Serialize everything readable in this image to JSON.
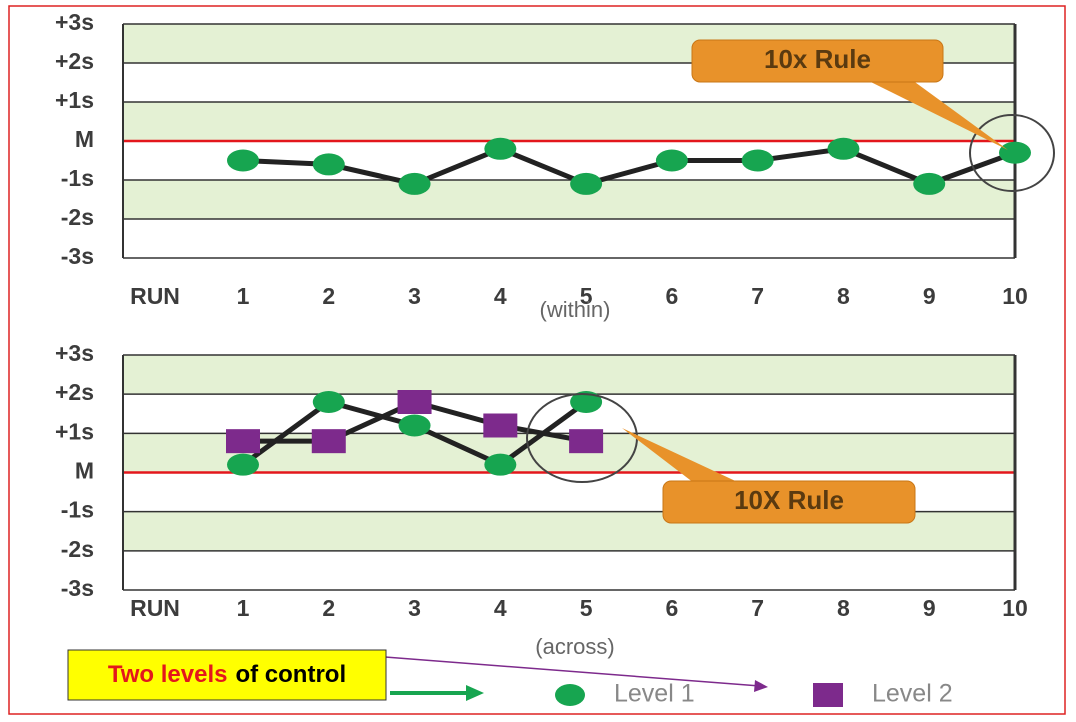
{
  "chart_data": [
    {
      "type": "line",
      "x_label": "RUN",
      "subtitle": "(within)",
      "annotation": "10x Rule",
      "categories": [
        1,
        2,
        3,
        4,
        5,
        6,
        7,
        8,
        9,
        10
      ],
      "series": [
        {
          "color": "#17a550",
          "line_color": "#222222",
          "marker": "circle",
          "values": [
            -0.5,
            -0.6,
            -1.1,
            -0.2,
            -1.1,
            -0.5,
            -0.5,
            -0.2,
            -1.1,
            -0.3
          ]
        }
      ],
      "ylim": [
        -3,
        3
      ],
      "yticks": [
        {
          "value": 3,
          "label": "+3s"
        },
        {
          "value": 2,
          "label": "+2s"
        },
        {
          "value": 1,
          "label": "+1s"
        },
        {
          "value": 0,
          "label": "M"
        },
        {
          "value": -1,
          "label": "-1s"
        },
        {
          "value": -2,
          "label": "-2s"
        },
        {
          "value": -3,
          "label": "-3s"
        }
      ],
      "hline": {
        "value": 0,
        "color": "#e3171c"
      },
      "grid": true
    },
    {
      "type": "line",
      "x_label": "RUN",
      "subtitle": "(across)",
      "annotation": "10X Rule",
      "categories": [
        1,
        2,
        3,
        4,
        5,
        6,
        7,
        8,
        9,
        10
      ],
      "series": [
        {
          "name": "Level 1",
          "color": "#17a550",
          "line_color": "#222222",
          "marker": "circle",
          "values": [
            0.2,
            1.8,
            1.2,
            0.2,
            1.8,
            null,
            null,
            null,
            null,
            null
          ]
        },
        {
          "name": "Level 2",
          "color": "#7d2a8c",
          "line_color": "#222222",
          "marker": "square",
          "values": [
            0.8,
            0.8,
            1.8,
            1.2,
            0.8,
            null,
            null,
            null,
            null,
            null
          ]
        }
      ],
      "ylim": [
        -3,
        3
      ],
      "yticks": [
        {
          "value": 3,
          "label": "+3s"
        },
        {
          "value": 2,
          "label": "+2s"
        },
        {
          "value": 1,
          "label": "+1s"
        },
        {
          "value": 0,
          "label": "M"
        },
        {
          "value": -1,
          "label": "-1s"
        },
        {
          "value": -2,
          "label": "-2s"
        },
        {
          "value": -3,
          "label": "-3s"
        }
      ],
      "hline": {
        "value": 0,
        "color": "#e3171c"
      },
      "grid": true,
      "legend": "bottom"
    }
  ],
  "note": {
    "parts": [
      "Two levels",
      "of control"
    ],
    "colors": [
      "#e3171c",
      "#000000"
    ]
  }
}
